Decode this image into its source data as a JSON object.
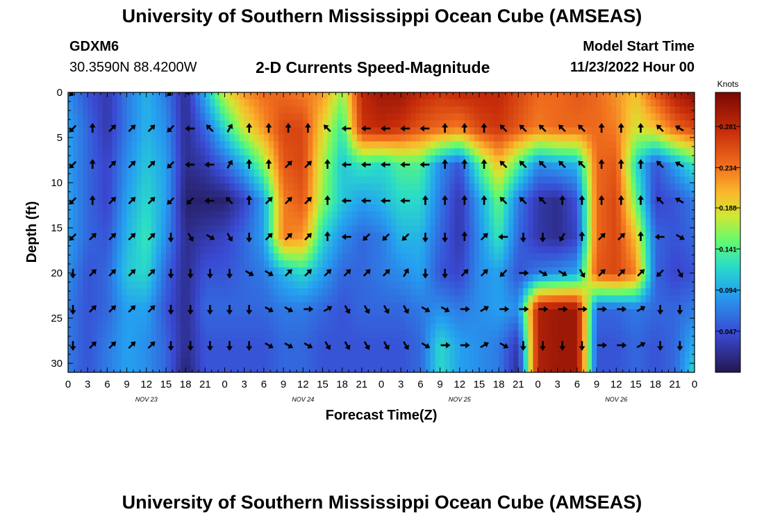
{
  "header": {
    "title": "University of Southern Mississippi Ocean Cube (AMSEAS)",
    "station_id": "GDXM6",
    "coordinates": "30.3590N  88.4200W",
    "subtitle": "2-D Currents Speed-Magnitude",
    "model_start_label": "Model Start Time",
    "model_start_value": "11/23/2022 Hour 00"
  },
  "footer": {
    "title": "University of Southern Mississippi Ocean Cube (AMSEAS)"
  },
  "chart_data": {
    "type": "heatmap",
    "title": "2-D Currents Speed-Magnitude",
    "xlabel": "Forecast Time(Z)",
    "ylabel": "Depth (ft)",
    "x_range_hours": [
      0,
      96
    ],
    "y_range_ft": [
      0,
      31
    ],
    "x_ticks": [
      {
        "hour": 0,
        "label": "0"
      },
      {
        "hour": 3,
        "label": "3"
      },
      {
        "hour": 6,
        "label": "6"
      },
      {
        "hour": 9,
        "label": "9"
      },
      {
        "hour": 12,
        "label": "12"
      },
      {
        "hour": 15,
        "label": "15"
      },
      {
        "hour": 18,
        "label": "18"
      },
      {
        "hour": 21,
        "label": "21"
      },
      {
        "hour": 24,
        "label": "0"
      },
      {
        "hour": 27,
        "label": "3"
      },
      {
        "hour": 30,
        "label": "6"
      },
      {
        "hour": 33,
        "label": "9"
      },
      {
        "hour": 36,
        "label": "12"
      },
      {
        "hour": 39,
        "label": "15"
      },
      {
        "hour": 42,
        "label": "18"
      },
      {
        "hour": 45,
        "label": "21"
      },
      {
        "hour": 48,
        "label": "0"
      },
      {
        "hour": 51,
        "label": "3"
      },
      {
        "hour": 54,
        "label": "6"
      },
      {
        "hour": 57,
        "label": "9"
      },
      {
        "hour": 60,
        "label": "12"
      },
      {
        "hour": 63,
        "label": "15"
      },
      {
        "hour": 66,
        "label": "18"
      },
      {
        "hour": 69,
        "label": "21"
      },
      {
        "hour": 72,
        "label": "0"
      },
      {
        "hour": 75,
        "label": "3"
      },
      {
        "hour": 78,
        "label": "6"
      },
      {
        "hour": 81,
        "label": "9"
      },
      {
        "hour": 84,
        "label": "12"
      },
      {
        "hour": 87,
        "label": "15"
      },
      {
        "hour": 90,
        "label": "18"
      },
      {
        "hour": 93,
        "label": "21"
      },
      {
        "hour": 96,
        "label": "0"
      }
    ],
    "y_ticks": [
      {
        "ft": 0,
        "label": "0"
      },
      {
        "ft": 5,
        "label": "5"
      },
      {
        "ft": 10,
        "label": "10"
      },
      {
        "ft": 15,
        "label": "15"
      },
      {
        "ft": 20,
        "label": "20"
      },
      {
        "ft": 25,
        "label": "25"
      },
      {
        "ft": 30,
        "label": "30"
      }
    ],
    "day_labels": [
      {
        "hour": 12,
        "label": "NOV 23"
      },
      {
        "hour": 36,
        "label": "NOV 24"
      },
      {
        "hour": 60,
        "label": "NOV 25"
      },
      {
        "hour": 84,
        "label": "NOV 26"
      }
    ],
    "colorbar": {
      "title": "Knots",
      "min": 0.0,
      "max": 0.32,
      "ticks": [
        {
          "value": 0.047,
          "label": "0.047"
        },
        {
          "value": 0.094,
          "label": "0.094"
        },
        {
          "value": 0.141,
          "label": "0.141"
        },
        {
          "value": 0.188,
          "label": "0.188"
        },
        {
          "value": 0.234,
          "label": "0.234"
        },
        {
          "value": 0.281,
          "label": "0.281"
        }
      ]
    },
    "grid_x_hours": [
      0,
      3,
      6,
      9,
      12,
      15,
      18,
      21,
      24,
      27,
      30,
      33,
      36,
      39,
      42,
      45,
      48,
      51,
      54,
      57,
      60,
      63,
      66,
      69,
      72,
      75,
      78,
      81,
      84,
      87,
      90,
      93,
      96
    ],
    "grid_y_ft": [
      0,
      4,
      8,
      12,
      16,
      20,
      24,
      28,
      31
    ],
    "speed_knots": [
      [
        0.08,
        0.05,
        0.03,
        0.07,
        0.1,
        0.07,
        0.02,
        0.1,
        0.18,
        0.22,
        0.24,
        0.24,
        0.23,
        0.22,
        0.16,
        0.28,
        0.3,
        0.3,
        0.28,
        0.27,
        0.28,
        0.28,
        0.28,
        0.26,
        0.24,
        0.24,
        0.25,
        0.24,
        0.22,
        0.2,
        0.25,
        0.29,
        0.31
      ],
      [
        0.09,
        0.06,
        0.03,
        0.07,
        0.1,
        0.08,
        0.02,
        0.06,
        0.12,
        0.18,
        0.22,
        0.26,
        0.26,
        0.19,
        0.13,
        0.27,
        0.28,
        0.27,
        0.25,
        0.24,
        0.23,
        0.26,
        0.27,
        0.25,
        0.23,
        0.24,
        0.24,
        0.24,
        0.23,
        0.18,
        0.2,
        0.24,
        0.26
      ],
      [
        0.09,
        0.06,
        0.04,
        0.08,
        0.11,
        0.09,
        0.02,
        0.03,
        0.06,
        0.1,
        0.16,
        0.25,
        0.26,
        0.17,
        0.11,
        0.13,
        0.12,
        0.14,
        0.14,
        0.08,
        0.05,
        0.14,
        0.2,
        0.14,
        0.08,
        0.09,
        0.1,
        0.24,
        0.25,
        0.12,
        0.05,
        0.09,
        0.13
      ],
      [
        0.09,
        0.06,
        0.04,
        0.09,
        0.12,
        0.09,
        0.01,
        0.01,
        0.01,
        0.04,
        0.09,
        0.23,
        0.25,
        0.16,
        0.11,
        0.09,
        0.1,
        0.12,
        0.12,
        0.07,
        0.03,
        0.09,
        0.15,
        0.07,
        0.03,
        0.02,
        0.05,
        0.24,
        0.26,
        0.15,
        0.04,
        0.05,
        0.07
      ],
      [
        0.09,
        0.06,
        0.05,
        0.1,
        0.13,
        0.08,
        0.02,
        0.03,
        0.04,
        0.06,
        0.09,
        0.23,
        0.22,
        0.12,
        0.08,
        0.06,
        0.07,
        0.1,
        0.1,
        0.06,
        0.03,
        0.08,
        0.13,
        0.06,
        0.03,
        0.02,
        0.04,
        0.24,
        0.26,
        0.2,
        0.06,
        0.05,
        0.06
      ],
      [
        0.08,
        0.05,
        0.06,
        0.11,
        0.12,
        0.06,
        0.02,
        0.05,
        0.05,
        0.06,
        0.07,
        0.1,
        0.12,
        0.09,
        0.06,
        0.06,
        0.07,
        0.08,
        0.09,
        0.05,
        0.04,
        0.08,
        0.09,
        0.05,
        0.07,
        0.08,
        0.09,
        0.25,
        0.26,
        0.23,
        0.06,
        0.04,
        0.05
      ],
      [
        0.07,
        0.05,
        0.06,
        0.09,
        0.09,
        0.05,
        0.02,
        0.06,
        0.06,
        0.06,
        0.06,
        0.07,
        0.07,
        0.06,
        0.05,
        0.06,
        0.06,
        0.06,
        0.07,
        0.08,
        0.07,
        0.08,
        0.09,
        0.08,
        0.29,
        0.3,
        0.3,
        0.06,
        0.06,
        0.07,
        0.06,
        0.06,
        0.07
      ],
      [
        0.07,
        0.05,
        0.07,
        0.09,
        0.08,
        0.06,
        0.02,
        0.05,
        0.05,
        0.05,
        0.05,
        0.06,
        0.06,
        0.05,
        0.05,
        0.05,
        0.05,
        0.05,
        0.06,
        0.12,
        0.09,
        0.08,
        0.07,
        0.03,
        0.29,
        0.3,
        0.3,
        0.05,
        0.05,
        0.06,
        0.05,
        0.06,
        0.1
      ],
      [
        0.07,
        0.05,
        0.07,
        0.09,
        0.08,
        0.06,
        0.01,
        0.05,
        0.05,
        0.05,
        0.05,
        0.06,
        0.06,
        0.05,
        0.05,
        0.05,
        0.05,
        0.05,
        0.06,
        0.12,
        0.09,
        0.08,
        0.07,
        0.02,
        0.29,
        0.3,
        0.3,
        0.05,
        0.05,
        0.06,
        0.05,
        0.06,
        0.12
      ]
    ],
    "vector_x_hours": [
      0.75,
      3.75,
      6.75,
      9.75,
      12.75,
      15.75,
      18.75,
      21.75,
      24.75,
      27.75,
      30.75,
      33.75,
      36.75,
      39.75,
      42.75,
      45.75,
      48.75,
      51.75,
      54.75,
      57.75,
      60.75,
      63.75,
      66.75,
      69.75,
      72.75,
      75.75,
      78.75,
      81.75,
      84.75,
      87.75,
      90.75,
      93.75
    ],
    "vector_depths_ft": [
      0,
      4,
      8,
      12,
      16,
      20,
      24,
      28
    ],
    "vector_direction_deg": [
      [
        225,
        null,
        null,
        null,
        null,
        225,
        270,
        null,
        null,
        null,
        null,
        null,
        null,
        null,
        null,
        null,
        null,
        null,
        null,
        null,
        null,
        null,
        null,
        null,
        null,
        null,
        null,
        null,
        null,
        null,
        null,
        null
      ],
      [
        225,
        0,
        45,
        45,
        45,
        225,
        270,
        315,
        30,
        0,
        0,
        0,
        0,
        315,
        270,
        270,
        270,
        270,
        270,
        0,
        0,
        0,
        315,
        315,
        315,
        315,
        315,
        0,
        0,
        0,
        315,
        300
      ],
      [
        225,
        0,
        45,
        45,
        45,
        225,
        270,
        270,
        30,
        0,
        0,
        45,
        45,
        0,
        270,
        270,
        270,
        270,
        270,
        0,
        0,
        0,
        315,
        315,
        315,
        315,
        315,
        0,
        0,
        0,
        315,
        300
      ],
      [
        225,
        0,
        45,
        45,
        45,
        225,
        225,
        270,
        315,
        0,
        45,
        45,
        45,
        0,
        270,
        270,
        270,
        270,
        0,
        0,
        0,
        0,
        315,
        315,
        315,
        0,
        0,
        0,
        0,
        0,
        315,
        300
      ],
      [
        225,
        45,
        45,
        45,
        45,
        180,
        150,
        120,
        150,
        180,
        45,
        45,
        45,
        0,
        270,
        225,
        225,
        225,
        180,
        180,
        0,
        45,
        270,
        180,
        180,
        210,
        0,
        45,
        45,
        0,
        270,
        120
      ],
      [
        180,
        45,
        45,
        45,
        45,
        180,
        180,
        180,
        180,
        120,
        120,
        45,
        45,
        45,
        45,
        45,
        45,
        30,
        180,
        180,
        45,
        45,
        225,
        90,
        120,
        120,
        150,
        45,
        45,
        45,
        225,
        150
      ],
      [
        180,
        45,
        45,
        45,
        45,
        180,
        180,
        180,
        180,
        180,
        120,
        120,
        90,
        60,
        150,
        150,
        150,
        150,
        120,
        120,
        90,
        60,
        90,
        90,
        90,
        90,
        90,
        90,
        90,
        60,
        180,
        180
      ],
      [
        180,
        45,
        45,
        45,
        45,
        180,
        180,
        180,
        180,
        180,
        120,
        120,
        120,
        150,
        150,
        150,
        150,
        150,
        120,
        90,
        90,
        60,
        120,
        180,
        180,
        180,
        180,
        90,
        90,
        60,
        180,
        180
      ]
    ]
  }
}
